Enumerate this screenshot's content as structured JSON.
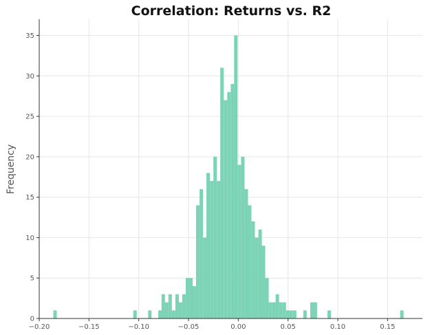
{
  "chart_data": {
    "type": "bar",
    "subtype": "histogram",
    "title": "Correlation: Returns vs. R2",
    "xlabel": "",
    "ylabel": "Frequency",
    "xlim": [
      -0.2,
      0.185
    ],
    "ylim": [
      0,
      37
    ],
    "bin_width": 0.00347,
    "bin_starts": [
      -0.1858,
      -0.1055,
      -0.0906,
      -0.0804,
      -0.0771,
      -0.0737,
      -0.0702,
      -0.0667,
      -0.0632,
      -0.0598,
      -0.0563,
      -0.0528,
      -0.0493,
      -0.0459,
      -0.0424,
      -0.0389,
      -0.0354,
      -0.032,
      -0.0285,
      -0.025,
      -0.0215,
      -0.0181,
      -0.0146,
      -0.0111,
      -0.0076,
      -0.0042,
      -0.0007,
      0.0028,
      0.0063,
      0.0097,
      0.0132,
      0.0167,
      0.0202,
      0.0236,
      0.0271,
      0.0306,
      0.0341,
      0.0375,
      0.041,
      0.0445,
      0.048,
      0.0514,
      0.0549,
      0.0653,
      0.0723,
      0.0757,
      0.0896,
      0.1626
    ],
    "counts": [
      1,
      1,
      1,
      1,
      3,
      2,
      3,
      1,
      3,
      2,
      3,
      5,
      5,
      4,
      14,
      16,
      10,
      18,
      17,
      20,
      17,
      31,
      27,
      28,
      29,
      35,
      19,
      20,
      16,
      14,
      12,
      10,
      11,
      9,
      5,
      2,
      2,
      3,
      2,
      2,
      1,
      1,
      1,
      1,
      2,
      2,
      1,
      1
    ],
    "xticks": [
      -0.2,
      -0.15,
      -0.1,
      -0.05,
      0.0,
      0.05,
      0.1,
      0.15
    ],
    "xtick_labels": [
      "−0.20",
      "−0.15",
      "−0.10",
      "−0.05",
      "0.00",
      "0.05",
      "0.10",
      "0.15"
    ],
    "yticks": [
      0,
      5,
      10,
      15,
      20,
      25,
      30,
      35
    ],
    "grid": true,
    "legend": "none",
    "colors": {
      "bar": "#7dd3b5",
      "grid": "#e6e6e6",
      "axis": "#333333"
    }
  }
}
